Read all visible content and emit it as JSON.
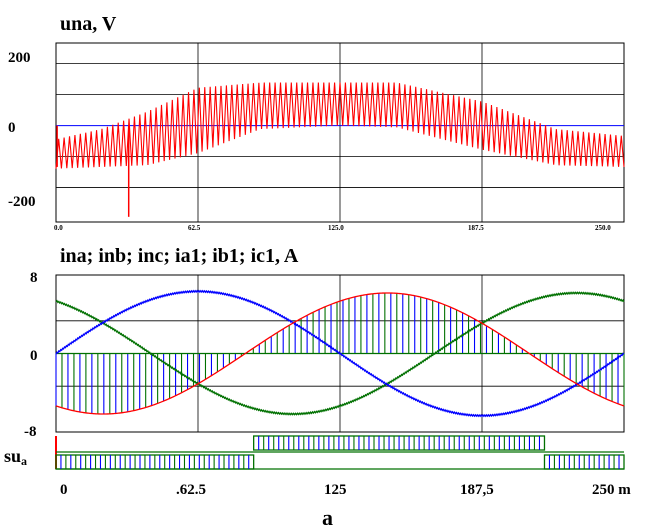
{
  "figure": {
    "caption": "a"
  },
  "chart_data": [
    {
      "type": "line",
      "title": "una, V",
      "yticks": [
        200,
        0,
        -200
      ],
      "ytick_labels": [
        "200",
        "0",
        "-200"
      ],
      "xtick_labels": [
        "0.0",
        "62.5",
        "125.0",
        "187.5",
        "250.0"
      ],
      "ylim": [
        -280,
        240
      ],
      "xlim": [
        0,
        250
      ],
      "x_gridlines": [
        62.5,
        125,
        187.5
      ],
      "y_gridlines": [
        180,
        90,
        -90,
        -180
      ],
      "zero_line_color": "#0000ff",
      "series": [
        {
          "color": "#ff0000",
          "pulses": 105,
          "envelope_top": [
            [
              0,
              -40
            ],
            [
              20,
              -10
            ],
            [
              40,
              40
            ],
            [
              62.5,
              110
            ],
            [
              90,
              125
            ],
            [
              125,
              125
            ],
            [
              150,
              125
            ],
            [
              187.5,
              70
            ],
            [
              220,
              -10
            ],
            [
              250,
              -30
            ]
          ],
          "envelope_bottom": [
            [
              0,
              -125
            ],
            [
              40,
              -115
            ],
            [
              62.5,
              -80
            ],
            [
              90,
              -10
            ],
            [
              125,
              0
            ],
            [
              150,
              -5
            ],
            [
              187.5,
              -70
            ],
            [
              220,
              -115
            ],
            [
              250,
              -120
            ]
          ],
          "spikes": [
            {
              "x": 32,
              "y": -265
            },
            {
              "x": 0.5,
              "y": -120
            }
          ]
        }
      ]
    },
    {
      "type": "line",
      "title": "ina; inb; inc; ia1; ib1; ic1, A",
      "yticks": [
        8,
        0,
        -8
      ],
      "ytick_labels": [
        "8",
        "0",
        "-8"
      ],
      "ylim": [
        -9.6,
        9.6
      ],
      "xlim": [
        0,
        250
      ],
      "x_gridlines": [
        62.5,
        125,
        187.5
      ],
      "y_gridlines": [
        4,
        -4
      ],
      "series": [
        {
          "color": "#0000ff",
          "amplitude": 7.6,
          "phase_deg": 0
        },
        {
          "color": "#ff0000",
          "amplitude": 7.4,
          "phase_deg": -120
        },
        {
          "color": "#007000",
          "amplitude": 7.4,
          "phase_deg": 120
        },
        {
          "color": "#0000ff",
          "type": "pwm-hatch",
          "note": "switched phase currents",
          "pulses": 95
        },
        {
          "color": "#007000",
          "type": "pwm-hatch",
          "pulses": 95
        }
      ]
    },
    {
      "type": "line",
      "ylabel_main": "su",
      "ylabel_sub": "a",
      "xtick_labels": [
        "0",
        ".62.5",
        "125",
        "187,5",
        "250 m"
      ],
      "xticks": [
        0,
        62.5,
        125,
        187.5,
        250
      ],
      "xlim": [
        0,
        250
      ],
      "series": [
        {
          "color": "#007000",
          "type": "pulse-train",
          "on_intervals": [
            [
              87,
              215
            ]
          ],
          "high": 1
        },
        {
          "color": "#007000",
          "type": "pulse-train",
          "on_intervals": [
            [
              0,
              87
            ],
            [
              215,
              250
            ]
          ],
          "low": 1
        }
      ]
    }
  ]
}
